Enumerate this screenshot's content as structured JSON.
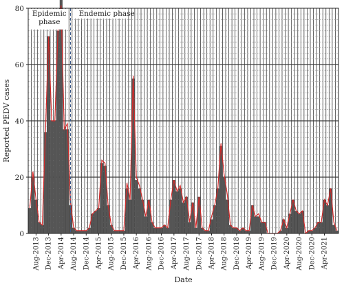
{
  "chart_data": {
    "type": "bar",
    "title": "",
    "xlabel": "Date",
    "ylabel": "Reported PEDV cases",
    "ylim": [
      0,
      80
    ],
    "ytick_values": [
      0,
      20,
      40,
      60,
      80
    ],
    "grid": true,
    "x_start_month": "Jun-2013",
    "month_count": 99,
    "x_tick_labels": [
      "Aug-2013",
      "Dec-2013",
      "Apr-2014",
      "Aug-2014",
      "Dec-2014",
      "Apr-2015",
      "Aug-2015",
      "Dec-2015",
      "Apr-2016",
      "Aug-2016",
      "Dec-2016",
      "Apr-2017",
      "Aug-2017",
      "Dec-2017",
      "Apr-2018",
      "Aug-2018",
      "Dec-2018",
      "Apr-2019",
      "Aug-2019",
      "Dec-2019",
      "Apr-2020",
      "Aug-2020",
      "Dec-2020",
      "Apr-2021"
    ],
    "phase_boundary": "Jul-2014",
    "annotations": [
      {
        "lines": [
          "Epidemic",
          "phase"
        ]
      },
      {
        "lines": [
          "Endemic phase"
        ]
      }
    ],
    "series": [
      {
        "type": "bar",
        "color": "#555555",
        "values": [
          9,
          20,
          12,
          4,
          3,
          36,
          70,
          40,
          40,
          72,
          85,
          37,
          37,
          10,
          2,
          1,
          1,
          1,
          1,
          2,
          7,
          8,
          9,
          25,
          24,
          10,
          3,
          1,
          1,
          1,
          1,
          16,
          12,
          55,
          19,
          16,
          12,
          6,
          12,
          4,
          2,
          2,
          2,
          3,
          2,
          12,
          19,
          15,
          16,
          11,
          13,
          4,
          11,
          2,
          13,
          2,
          1,
          1,
          5,
          10,
          16,
          31,
          20,
          12,
          3,
          2,
          2,
          1,
          2,
          1,
          1,
          10,
          6,
          6,
          4,
          4,
          0,
          0,
          0,
          0,
          1,
          5,
          2,
          7,
          12,
          8,
          7,
          8,
          0,
          1,
          1,
          2,
          4,
          4,
          12,
          10,
          16,
          3,
          1
        ]
      },
      {
        "type": "line",
        "color": "#d42a2a",
        "values": [
          9,
          22,
          12,
          4,
          3,
          36,
          70,
          40,
          40,
          72,
          81,
          37,
          39,
          11,
          2,
          1,
          1,
          1,
          1,
          2,
          7,
          8,
          9,
          26,
          25,
          10,
          3,
          1,
          1,
          1,
          1,
          18,
          12,
          56,
          20,
          17,
          12,
          6,
          12,
          4,
          2,
          2,
          2,
          3,
          2,
          12,
          19,
          15,
          17,
          11,
          13,
          4,
          11,
          2,
          13,
          2,
          1,
          1,
          6,
          10,
          16,
          32,
          21,
          14,
          3,
          2,
          2,
          1,
          2,
          1,
          1,
          10,
          6,
          7,
          4,
          4,
          0,
          0,
          0,
          0,
          1,
          5,
          2,
          7,
          12,
          8,
          7,
          8,
          0,
          1,
          1,
          2,
          4,
          4,
          12,
          10,
          16,
          4,
          1
        ]
      }
    ]
  }
}
